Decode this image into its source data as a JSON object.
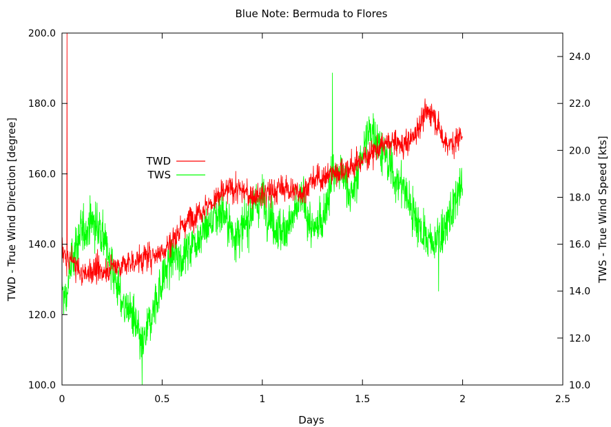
{
  "chart_data": {
    "type": "line",
    "title": "Blue Note: Bermuda to Flores",
    "xlabel": "Days",
    "ylabel": "TWD - True Wind Direction [degree]",
    "y2label": "TWS - True Wind Speed [kts]",
    "xlim": [
      0,
      2.5
    ],
    "ylim": [
      100,
      200
    ],
    "y2lim": [
      10,
      25
    ],
    "x_ticks": [
      0,
      0.5,
      1,
      1.5,
      2,
      2.5
    ],
    "x_tick_labels": [
      "0",
      "0.5",
      "1",
      "1.5",
      "2",
      "2.5"
    ],
    "y_ticks": [
      100,
      120,
      140,
      160,
      180,
      200
    ],
    "y_tick_labels": [
      "100.0",
      "120.0",
      "140.0",
      "160.0",
      "180.0",
      "200.0"
    ],
    "y2_ticks": [
      10,
      12,
      14,
      16,
      18,
      20,
      22,
      24
    ],
    "y2_tick_labels": [
      "10.0",
      "12.0",
      "14.0",
      "16.0",
      "18.0",
      "20.0",
      "22.0",
      "24.0"
    ],
    "grid": false,
    "legend_position": "left-middle",
    "series": [
      {
        "name": "TWD",
        "axis": "left",
        "color": "#ff0000",
        "noise": 3.5,
        "x": [
          0,
          0.02,
          0.05,
          0.1,
          0.15,
          0.2,
          0.25,
          0.3,
          0.35,
          0.4,
          0.45,
          0.5,
          0.55,
          0.6,
          0.65,
          0.7,
          0.75,
          0.8,
          0.85,
          0.9,
          0.95,
          1.0,
          1.05,
          1.1,
          1.15,
          1.2,
          1.25,
          1.3,
          1.35,
          1.4,
          1.45,
          1.5,
          1.55,
          1.6,
          1.65,
          1.7,
          1.75,
          1.8,
          1.85,
          1.9,
          1.95,
          2.0
        ],
        "values": [
          140,
          135,
          136,
          131,
          133,
          132,
          134,
          134,
          135,
          136,
          137,
          138,
          141,
          145,
          148,
          150,
          152,
          154,
          156,
          155,
          154,
          154,
          155,
          156,
          155,
          155,
          158,
          159,
          160,
          161,
          162,
          164,
          166,
          168,
          169,
          168,
          170,
          176,
          178,
          170,
          168,
          172
        ],
        "spikes": [
          {
            "x": 0.025,
            "value": 200
          }
        ]
      },
      {
        "name": "TWS",
        "axis": "right",
        "color": "#00ff00",
        "noise": 0.9,
        "x": [
          0,
          0.02,
          0.05,
          0.1,
          0.15,
          0.2,
          0.25,
          0.3,
          0.35,
          0.4,
          0.45,
          0.5,
          0.55,
          0.6,
          0.65,
          0.7,
          0.75,
          0.8,
          0.85,
          0.9,
          0.95,
          1.0,
          1.05,
          1.1,
          1.15,
          1.2,
          1.25,
          1.3,
          1.35,
          1.4,
          1.45,
          1.5,
          1.55,
          1.6,
          1.65,
          1.7,
          1.75,
          1.8,
          1.85,
          1.9,
          1.95,
          2.0
        ],
        "values": [
          14,
          13.5,
          15.5,
          16.5,
          17,
          16.5,
          15,
          13.5,
          13,
          11.5,
          13,
          14.5,
          15.5,
          15.5,
          16,
          16.5,
          17,
          17.5,
          16.5,
          16.5,
          17.5,
          18,
          17,
          16.5,
          17,
          18,
          16.5,
          17,
          19,
          19,
          18,
          20,
          21,
          20,
          19,
          18.5,
          17.5,
          16.5,
          16,
          16.5,
          17.5,
          18.5
        ],
        "spikes": [
          {
            "x": 0.4,
            "value": 10
          },
          {
            "x": 1.35,
            "value": 23.3
          },
          {
            "x": 1.88,
            "value": 14
          }
        ]
      }
    ]
  }
}
